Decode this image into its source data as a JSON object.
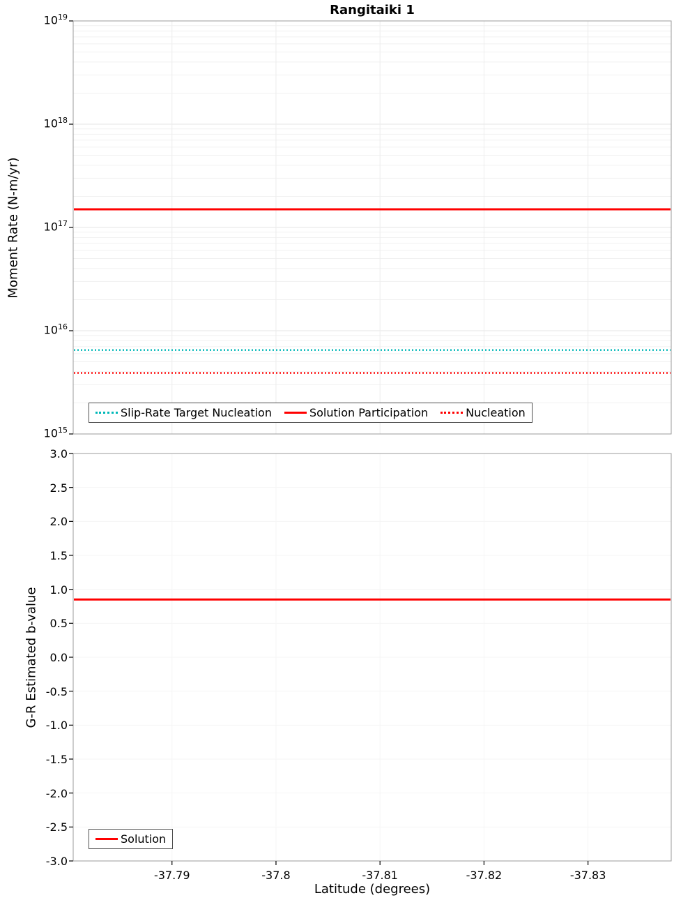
{
  "title": "Rangitaiki 1",
  "x_axis": {
    "label": "Latitude (degrees)",
    "ticks": [
      -37.79,
      -37.8,
      -37.81,
      -37.82,
      -37.83
    ],
    "tick_labels": [
      "-37.79",
      "-37.8",
      "-37.81",
      "-37.82",
      "-37.83"
    ],
    "range": [
      -37.7805,
      -37.838
    ],
    "direction": "decreasing"
  },
  "chart_data": [
    {
      "type": "line",
      "title": "Rangitaiki 1",
      "ylabel": "Moment Rate (N-m/yr)",
      "yscale": "log",
      "ylim": [
        1000000000000000.0,
        1e+19
      ],
      "ytick_exponents": [
        19,
        18,
        17,
        16,
        15
      ],
      "grid": true,
      "legend_position": "bottom-inside",
      "series": [
        {
          "name": "Slip-Rate Target Nucleation",
          "style": "dotted",
          "color": "#00b8b8",
          "value": 6500000000000000.0
        },
        {
          "name": "Solution Participation",
          "style": "solid",
          "color": "#ff0000",
          "value": 1.5e+17
        },
        {
          "name": "Nucleation",
          "style": "dotted",
          "color": "#ff0000",
          "value": 3900000000000000.0
        }
      ]
    },
    {
      "type": "line",
      "ylabel": "G-R Estimated b-value",
      "yscale": "linear",
      "ylim": [
        -3.0,
        3.0
      ],
      "yticks": [
        3.0,
        2.5,
        2.0,
        1.5,
        1.0,
        0.5,
        0.0,
        -0.5,
        -1.0,
        -1.5,
        -2.0,
        -2.5,
        -3.0
      ],
      "ytick_labels": [
        "3.0",
        "2.5",
        "2.0",
        "1.5",
        "1.0",
        "0.5",
        "0.0",
        "-0.5",
        "-1.0",
        "-1.5",
        "-2.0",
        "-2.5",
        "-3.0"
      ],
      "xlabel": "Latitude (degrees)",
      "grid": true,
      "legend_position": "bottom-left-inside",
      "series": [
        {
          "name": "Solution",
          "style": "solid",
          "color": "#ff0000",
          "value": 0.85
        }
      ]
    }
  ],
  "colors": {
    "solution": "#ff0000",
    "slip_rate_target": "#00b8b8",
    "grid_major": "#e4e4e4",
    "grid_minor": "#f1f1f1",
    "plot_border": "#9b9b9b"
  }
}
